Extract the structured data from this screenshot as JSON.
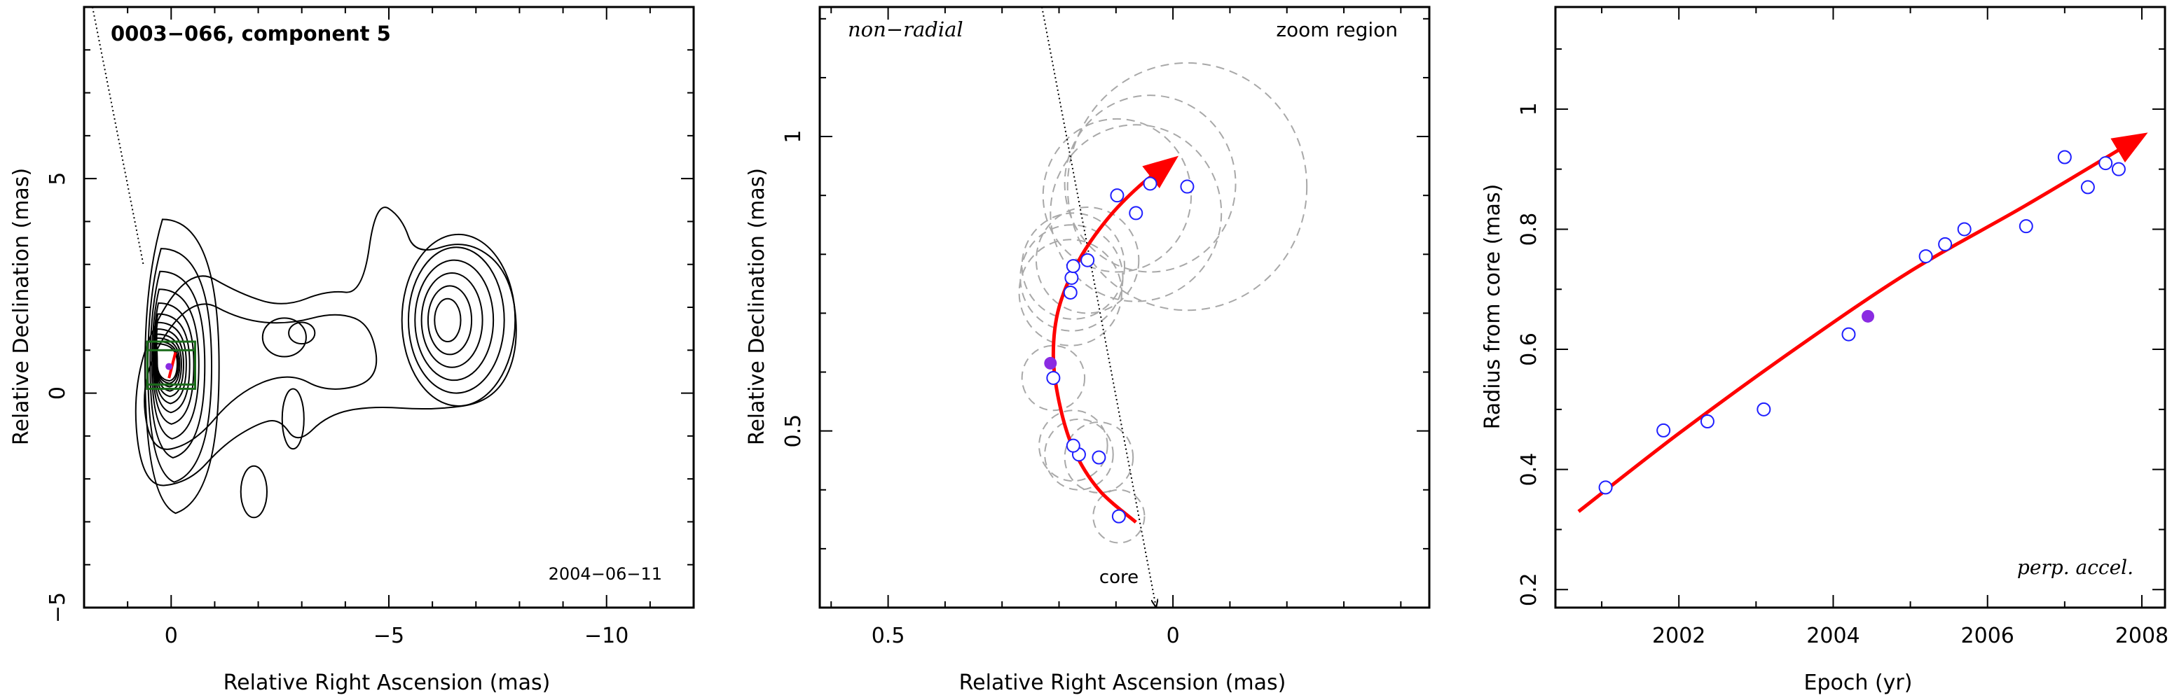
{
  "chart_data": [
    {
      "type": "contour",
      "title": "0003−066, component 5",
      "epoch_label": "2004−06−11",
      "xlabel": "Relative Right Ascension (mas)",
      "ylabel": "Relative Declination (mas)",
      "xlim": [
        2,
        -12
      ],
      "ylim": [
        -5,
        9
      ],
      "x_ticks": [
        0,
        -5,
        -10
      ],
      "x_tick_labels": [
        "0",
        "−5",
        "−10"
      ],
      "y_ticks": [
        -5,
        0,
        5
      ],
      "y_tick_labels": [
        "−5",
        "0",
        "5"
      ],
      "zoom_boxes": [
        {
          "x": [
            0.55,
            -0.55
          ],
          "y": [
            0.1,
            1.2
          ]
        },
        {
          "x": [
            0.55,
            -0.55
          ],
          "y": [
            0.2,
            1.0
          ]
        }
      ],
      "colors": {
        "contour": "#000000",
        "zoom_box": "#1a6b1a",
        "track": "#ff0000",
        "point": "#8a2be2"
      }
    },
    {
      "type": "scatter",
      "annotations": [
        "non−radial",
        "zoom region",
        "core"
      ],
      "xlabel": "Relative Right Ascension (mas)",
      "ylabel": "Relative Declination (mas)",
      "xlim": [
        0.62,
        -0.45
      ],
      "ylim": [
        0.2,
        1.22
      ],
      "x_ticks": [
        0.5,
        0
      ],
      "x_tick_labels": [
        "0.5",
        "0"
      ],
      "y_ticks": [
        0.5,
        1
      ],
      "y_tick_labels": [
        "0.5",
        "1"
      ],
      "points": [
        {
          "x": 0.095,
          "y": 0.355
        },
        {
          "x": 0.13,
          "y": 0.455
        },
        {
          "x": 0.165,
          "y": 0.46
        },
        {
          "x": 0.175,
          "y": 0.475
        },
        {
          "x": 0.21,
          "y": 0.59
        },
        {
          "x": 0.18,
          "y": 0.735
        },
        {
          "x": 0.178,
          "y": 0.76
        },
        {
          "x": 0.175,
          "y": 0.78
        },
        {
          "x": 0.15,
          "y": 0.79
        },
        {
          "x": 0.065,
          "y": 0.87
        },
        {
          "x": 0.098,
          "y": 0.9
        },
        {
          "x": 0.04,
          "y": 0.92
        },
        {
          "x": -0.025,
          "y": 0.915
        }
      ],
      "highlight_point": {
        "x": 0.215,
        "y": 0.615
      },
      "uncertainty_radii": [
        0.045,
        0.06,
        0.06,
        0.06,
        0.055,
        0.09,
        0.09,
        0.09,
        0.09,
        0.15,
        0.13,
        0.15,
        0.21
      ],
      "fit_curve": {
        "x": [
          0.065,
          0.13,
          0.175,
          0.2,
          0.21,
          0.2,
          0.165,
          0.115,
          0.06,
          0.0
        ],
        "y": [
          0.345,
          0.4,
          0.47,
          0.55,
          0.63,
          0.71,
          0.79,
          0.86,
          0.915,
          0.96
        ]
      },
      "radial_line": {
        "x": [
          0.23,
          0.03
        ],
        "y": [
          1.22,
          0.2
        ]
      },
      "colors": {
        "points": "#1f1fff",
        "highlight": "#8a2be2",
        "fit": "#ff0000",
        "circles": "#a8a8a8"
      }
    },
    {
      "type": "scatter",
      "annotation": "perp. accel.",
      "xlabel": "Epoch (yr)",
      "ylabel": "Radius from core (mas)",
      "xlim": [
        2000.4,
        2008.3
      ],
      "ylim": [
        0.17,
        1.17
      ],
      "x_ticks": [
        2002,
        2004,
        2006,
        2008
      ],
      "x_tick_labels": [
        "2002",
        "2004",
        "2006",
        "2008"
      ],
      "y_ticks": [
        0.2,
        0.4,
        0.6,
        0.8,
        1
      ],
      "y_tick_labels": [
        "0.2",
        "0.4",
        "0.6",
        "0.8",
        "1"
      ],
      "points": [
        {
          "x": 2001.05,
          "y": 0.37
        },
        {
          "x": 2001.8,
          "y": 0.465
        },
        {
          "x": 2002.37,
          "y": 0.48
        },
        {
          "x": 2003.1,
          "y": 0.5
        },
        {
          "x": 2004.2,
          "y": 0.625
        },
        {
          "x": 2005.2,
          "y": 0.755
        },
        {
          "x": 2005.45,
          "y": 0.775
        },
        {
          "x": 2005.7,
          "y": 0.8
        },
        {
          "x": 2006.5,
          "y": 0.805
        },
        {
          "x": 2007.0,
          "y": 0.92
        },
        {
          "x": 2007.3,
          "y": 0.87
        },
        {
          "x": 2007.53,
          "y": 0.91
        },
        {
          "x": 2007.7,
          "y": 0.9
        }
      ],
      "highlight_point": {
        "x": 2004.45,
        "y": 0.655
      },
      "fit_curve": {
        "x": [
          2000.7,
          2002.0,
          2003.5,
          2005.0,
          2006.5,
          2008.0
        ],
        "y": [
          0.33,
          0.46,
          0.6,
          0.73,
          0.84,
          0.955
        ]
      },
      "colors": {
        "points": "#1f1fff",
        "highlight": "#8a2be2",
        "fit": "#ff0000"
      }
    }
  ]
}
